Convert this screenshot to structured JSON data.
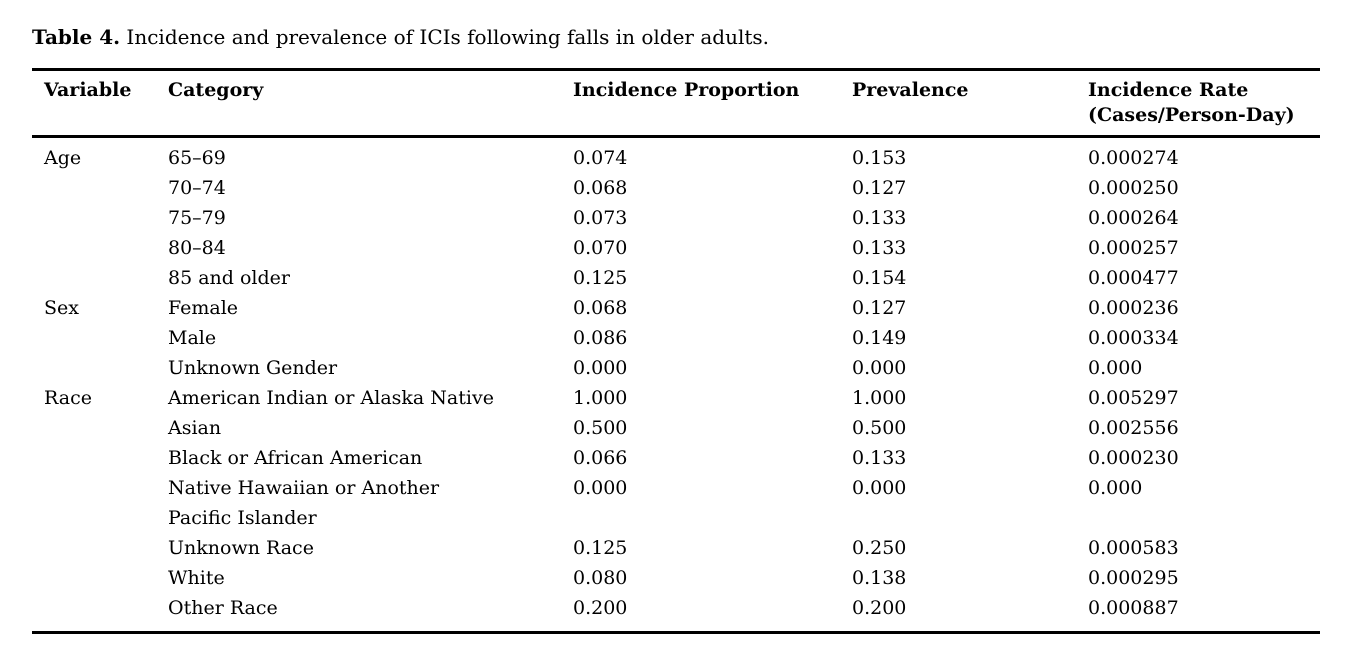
{
  "title": {
    "label": "Table 4.",
    "text": " Incidence and prevalence of ICIs following falls in older adults."
  },
  "table": {
    "headers": [
      "Variable",
      "Category",
      "Incidence Proportion",
      "Prevalence",
      "Incidence Rate\n(Cases/Person-Day)"
    ],
    "rows": [
      {
        "variable": "Age",
        "category": "65–69",
        "incidence_proportion": "0.074",
        "prevalence": "0.153",
        "incidence_rate": "0.000274"
      },
      {
        "variable": "",
        "category": "70–74",
        "incidence_proportion": "0.068",
        "prevalence": "0.127",
        "incidence_rate": "0.000250"
      },
      {
        "variable": "",
        "category": "75–79",
        "incidence_proportion": "0.073",
        "prevalence": "0.133",
        "incidence_rate": "0.000264"
      },
      {
        "variable": "",
        "category": "80–84",
        "incidence_proportion": "0.070",
        "prevalence": "0.133",
        "incidence_rate": "0.000257"
      },
      {
        "variable": "",
        "category": "85 and older",
        "incidence_proportion": "0.125",
        "prevalence": "0.154",
        "incidence_rate": "0.000477"
      },
      {
        "variable": "Sex",
        "category": "Female",
        "incidence_proportion": "0.068",
        "prevalence": "0.127",
        "incidence_rate": "0.000236"
      },
      {
        "variable": "",
        "category": "Male",
        "incidence_proportion": "0.086",
        "prevalence": "0.149",
        "incidence_rate": "0.000334"
      },
      {
        "variable": "",
        "category": "Unknown Gender",
        "incidence_proportion": "0.000",
        "prevalence": "0.000",
        "incidence_rate": "0.000"
      },
      {
        "variable": "Race",
        "category": "American Indian or Alaska Native",
        "incidence_proportion": "1.000",
        "prevalence": "1.000",
        "incidence_rate": "0.005297"
      },
      {
        "variable": "",
        "category": "Asian",
        "incidence_proportion": "0.500",
        "prevalence": "0.500",
        "incidence_rate": "0.002556"
      },
      {
        "variable": "",
        "category": "Black or African American",
        "incidence_proportion": "0.066",
        "prevalence": "0.133",
        "incidence_rate": "0.000230"
      },
      {
        "variable": "",
        "category": "Native Hawaiian or Another\nPacific Islander",
        "incidence_proportion": "0.000",
        "prevalence": "0.000",
        "incidence_rate": "0.000"
      },
      {
        "variable": "",
        "category": "Unknown Race",
        "incidence_proportion": "0.125",
        "prevalence": "0.250",
        "incidence_rate": "0.000583"
      },
      {
        "variable": "",
        "category": "White",
        "incidence_proportion": "0.080",
        "prevalence": "0.138",
        "incidence_rate": "0.000295"
      },
      {
        "variable": "",
        "category": "Other Race",
        "incidence_proportion": "0.200",
        "prevalence": "0.200",
        "incidence_rate": "0.000887"
      }
    ]
  }
}
